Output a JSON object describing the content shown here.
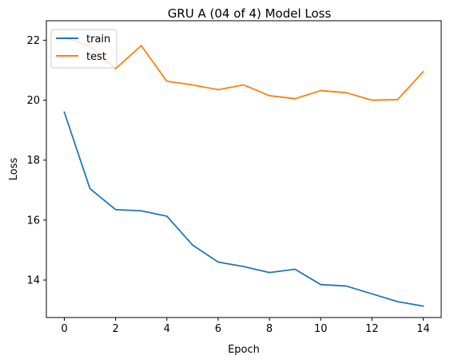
{
  "chart_data": {
    "type": "line",
    "title": "GRU A (04 of 4) Model Loss",
    "xlabel": "Epoch",
    "ylabel": "Loss",
    "x": [
      0,
      1,
      2,
      3,
      4,
      5,
      6,
      7,
      8,
      9,
      10,
      11,
      12,
      13,
      14
    ],
    "xlim": [
      -0.7,
      14.7
    ],
    "ylim": [
      12.75,
      22.65
    ],
    "xticks": [
      0,
      2,
      4,
      6,
      8,
      10,
      12,
      14
    ],
    "yticks": [
      14,
      16,
      18,
      20,
      22
    ],
    "grid": false,
    "legend_position": "top-left",
    "series": [
      {
        "name": "train",
        "color": "#1f77b4",
        "values": [
          19.6,
          17.05,
          16.35,
          16.31,
          16.13,
          15.17,
          14.6,
          14.45,
          14.25,
          14.36,
          13.85,
          13.8,
          13.54,
          13.28,
          13.13
        ]
      },
      {
        "name": "test",
        "color": "#ff7f0e",
        "values": [
          22.1,
          21.8,
          21.05,
          21.82,
          20.63,
          20.51,
          20.35,
          20.51,
          20.15,
          20.05,
          20.32,
          20.25,
          20.0,
          20.02,
          20.95
        ]
      }
    ]
  }
}
